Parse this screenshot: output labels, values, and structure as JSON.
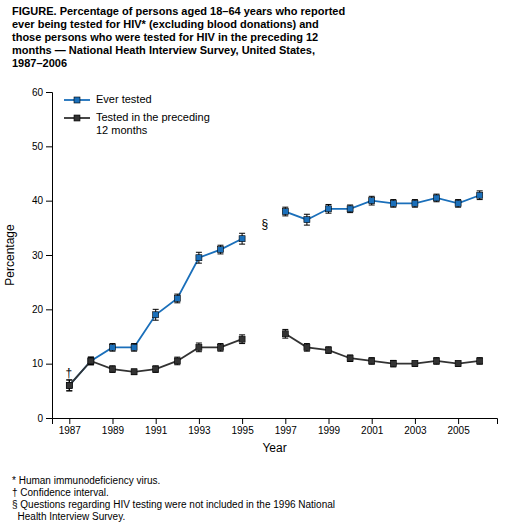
{
  "chart_data": {
    "type": "line",
    "title": "FIGURE. Percentage of persons aged 18–64 years who reported\never being tested for HIV* (excluding blood donations) and\nthose persons who were tested for HIV in the preceding 12\nmonths — National Heath Interview Survey, United States,\n1987–2006",
    "x_label": "Year",
    "y_label": "Percentage",
    "x": [
      1987,
      1988,
      1989,
      1990,
      1991,
      1992,
      1993,
      1994,
      1995,
      1996,
      1997,
      1998,
      1999,
      2000,
      2001,
      2002,
      2003,
      2004,
      2005,
      2006
    ],
    "series": [
      {
        "name": "Ever tested",
        "color": "#1a6fba",
        "marker": "square",
        "line_style": "solid",
        "values": [
          6.0,
          10.5,
          13.0,
          13.0,
          19.0,
          22.0,
          29.5,
          31.0,
          33.0,
          null,
          38.0,
          36.5,
          38.5,
          38.5,
          40.0,
          39.5,
          39.5,
          40.5,
          39.5,
          41.0
        ],
        "error_low": [
          1.0,
          0.7,
          0.7,
          0.7,
          1.0,
          0.8,
          1.0,
          0.8,
          1.0,
          null,
          0.8,
          1.0,
          0.8,
          0.7,
          0.8,
          0.7,
          0.7,
          0.7,
          0.7,
          0.8
        ],
        "error_high": [
          1.0,
          0.7,
          0.7,
          0.7,
          1.0,
          0.8,
          1.0,
          0.8,
          1.0,
          null,
          0.8,
          1.0,
          0.8,
          0.7,
          0.8,
          0.7,
          0.7,
          0.7,
          0.7,
          0.8
        ]
      },
      {
        "name": "Tested in the preceding\n12 months",
        "color": "#333333",
        "marker": "square",
        "line_style": "solid",
        "values": [
          6.0,
          10.5,
          9.0,
          8.5,
          9.0,
          10.5,
          13.0,
          13.0,
          14.5,
          null,
          15.5,
          13.0,
          12.5,
          11.0,
          10.5,
          10.0,
          10.0,
          10.5,
          10.0,
          10.5
        ],
        "error_low": [
          1.0,
          0.7,
          0.6,
          0.5,
          0.6,
          0.7,
          0.8,
          0.7,
          0.8,
          null,
          0.8,
          0.7,
          0.6,
          0.6,
          0.6,
          0.6,
          0.5,
          0.6,
          0.5,
          0.6
        ],
        "error_high": [
          1.0,
          0.7,
          0.6,
          0.5,
          0.6,
          0.7,
          0.8,
          0.7,
          0.8,
          null,
          0.8,
          0.7,
          0.6,
          0.6,
          0.6,
          0.6,
          0.5,
          0.6,
          0.5,
          0.6
        ]
      }
    ],
    "annotations": [
      {
        "text": "§",
        "x": 1995.9,
        "y": 35.5
      },
      {
        "text": "†",
        "x": 1986.82,
        "y": 8.2
      }
    ],
    "footnotes": [
      "* Human immunodeficiency virus.",
      "† Confidence interval.",
      "§ Questions regarding HIV testing were not included in the 1996 National",
      "  Health Interview Survey."
    ],
    "xlim": [
      1986.2,
      2006.8
    ],
    "xticks": [
      1987,
      1989,
      1991,
      1993,
      1995,
      1997,
      1999,
      2001,
      2003,
      2005
    ],
    "ylim": [
      0,
      60
    ],
    "yticks": [
      0,
      10,
      20,
      30,
      40,
      50,
      60
    ],
    "grid": false,
    "legend": "upper left"
  }
}
